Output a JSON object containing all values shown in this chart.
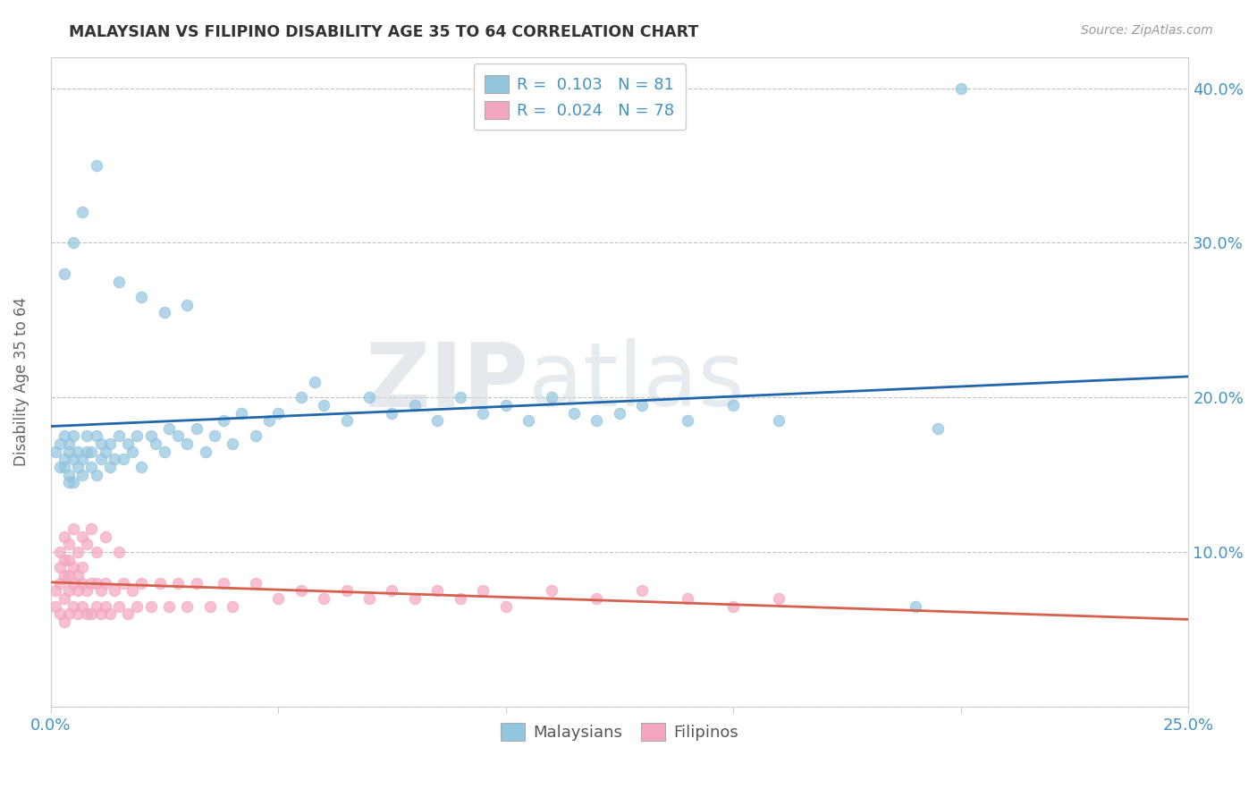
{
  "title": "MALAYSIAN VS FILIPINO DISABILITY AGE 35 TO 64 CORRELATION CHART",
  "source": "Source: ZipAtlas.com",
  "ylabel": "Disability Age 35 to 64",
  "xlim": [
    0.0,
    0.25
  ],
  "ylim": [
    0.0,
    0.42
  ],
  "xticks": [
    0.0,
    0.05,
    0.1,
    0.15,
    0.2,
    0.25
  ],
  "xticklabels": [
    "0.0%",
    "",
    "",
    "",
    "",
    "25.0%"
  ],
  "yticks_left": [],
  "yticks_right": [
    0.1,
    0.2,
    0.3,
    0.4
  ],
  "yticklabels_right": [
    "10.0%",
    "20.0%",
    "30.0%",
    "40.0%"
  ],
  "malaysian_color": "#92C5DE",
  "filipino_color": "#F4A6C0",
  "trend_malaysian_color": "#2166AC",
  "trend_filipino_color": "#D6604D",
  "R_malaysian": 0.103,
  "N_malaysian": 81,
  "R_filipino": 0.024,
  "N_filipino": 78,
  "legend_label_malaysian": "Malaysians",
  "legend_label_filipino": "Filipinos",
  "title_color": "#333333",
  "axis_tick_color": "#4393C3",
  "grid_color": "#bbbbbb",
  "watermark_zip": "ZIP",
  "watermark_atlas": "atlas",
  "malaysian_x": [
    0.001,
    0.002,
    0.002,
    0.003,
    0.003,
    0.003,
    0.004,
    0.004,
    0.004,
    0.004,
    0.005,
    0.005,
    0.005,
    0.006,
    0.006,
    0.007,
    0.007,
    0.008,
    0.008,
    0.009,
    0.009,
    0.01,
    0.01,
    0.011,
    0.011,
    0.012,
    0.013,
    0.013,
    0.014,
    0.015,
    0.016,
    0.017,
    0.018,
    0.019,
    0.02,
    0.022,
    0.023,
    0.025,
    0.026,
    0.028,
    0.03,
    0.032,
    0.034,
    0.036,
    0.038,
    0.04,
    0.042,
    0.045,
    0.048,
    0.05,
    0.055,
    0.058,
    0.06,
    0.065,
    0.07,
    0.075,
    0.08,
    0.085,
    0.09,
    0.095,
    0.1,
    0.105,
    0.11,
    0.115,
    0.12,
    0.125,
    0.13,
    0.14,
    0.15,
    0.16,
    0.003,
    0.005,
    0.007,
    0.01,
    0.015,
    0.02,
    0.025,
    0.03,
    0.19,
    0.195,
    0.2
  ],
  "malaysian_y": [
    0.165,
    0.17,
    0.155,
    0.16,
    0.175,
    0.155,
    0.15,
    0.145,
    0.165,
    0.17,
    0.145,
    0.16,
    0.175,
    0.155,
    0.165,
    0.15,
    0.16,
    0.165,
    0.175,
    0.155,
    0.165,
    0.15,
    0.175,
    0.16,
    0.17,
    0.165,
    0.155,
    0.17,
    0.16,
    0.175,
    0.16,
    0.17,
    0.165,
    0.175,
    0.155,
    0.175,
    0.17,
    0.165,
    0.18,
    0.175,
    0.17,
    0.18,
    0.165,
    0.175,
    0.185,
    0.17,
    0.19,
    0.175,
    0.185,
    0.19,
    0.2,
    0.21,
    0.195,
    0.185,
    0.2,
    0.19,
    0.195,
    0.185,
    0.2,
    0.19,
    0.195,
    0.185,
    0.2,
    0.19,
    0.185,
    0.19,
    0.195,
    0.185,
    0.195,
    0.185,
    0.28,
    0.3,
    0.32,
    0.35,
    0.275,
    0.265,
    0.255,
    0.26,
    0.065,
    0.18,
    0.4
  ],
  "filipino_x": [
    0.001,
    0.001,
    0.002,
    0.002,
    0.002,
    0.003,
    0.003,
    0.003,
    0.003,
    0.004,
    0.004,
    0.004,
    0.004,
    0.005,
    0.005,
    0.005,
    0.006,
    0.006,
    0.006,
    0.007,
    0.007,
    0.007,
    0.008,
    0.008,
    0.009,
    0.009,
    0.01,
    0.01,
    0.011,
    0.011,
    0.012,
    0.012,
    0.013,
    0.014,
    0.015,
    0.016,
    0.017,
    0.018,
    0.019,
    0.02,
    0.022,
    0.024,
    0.026,
    0.028,
    0.03,
    0.032,
    0.035,
    0.038,
    0.04,
    0.045,
    0.05,
    0.055,
    0.06,
    0.065,
    0.07,
    0.075,
    0.08,
    0.085,
    0.09,
    0.095,
    0.1,
    0.11,
    0.12,
    0.13,
    0.14,
    0.15,
    0.16,
    0.002,
    0.003,
    0.004,
    0.005,
    0.006,
    0.007,
    0.008,
    0.009,
    0.01,
    0.012,
    0.015
  ],
  "filipino_y": [
    0.065,
    0.075,
    0.06,
    0.08,
    0.09,
    0.055,
    0.07,
    0.085,
    0.095,
    0.06,
    0.075,
    0.085,
    0.095,
    0.065,
    0.08,
    0.09,
    0.06,
    0.075,
    0.085,
    0.065,
    0.08,
    0.09,
    0.06,
    0.075,
    0.06,
    0.08,
    0.065,
    0.08,
    0.06,
    0.075,
    0.065,
    0.08,
    0.06,
    0.075,
    0.065,
    0.08,
    0.06,
    0.075,
    0.065,
    0.08,
    0.065,
    0.08,
    0.065,
    0.08,
    0.065,
    0.08,
    0.065,
    0.08,
    0.065,
    0.08,
    0.07,
    0.075,
    0.07,
    0.075,
    0.07,
    0.075,
    0.07,
    0.075,
    0.07,
    0.075,
    0.065,
    0.075,
    0.07,
    0.075,
    0.07,
    0.065,
    0.07,
    0.1,
    0.11,
    0.105,
    0.115,
    0.1,
    0.11,
    0.105,
    0.115,
    0.1,
    0.11,
    0.1
  ]
}
